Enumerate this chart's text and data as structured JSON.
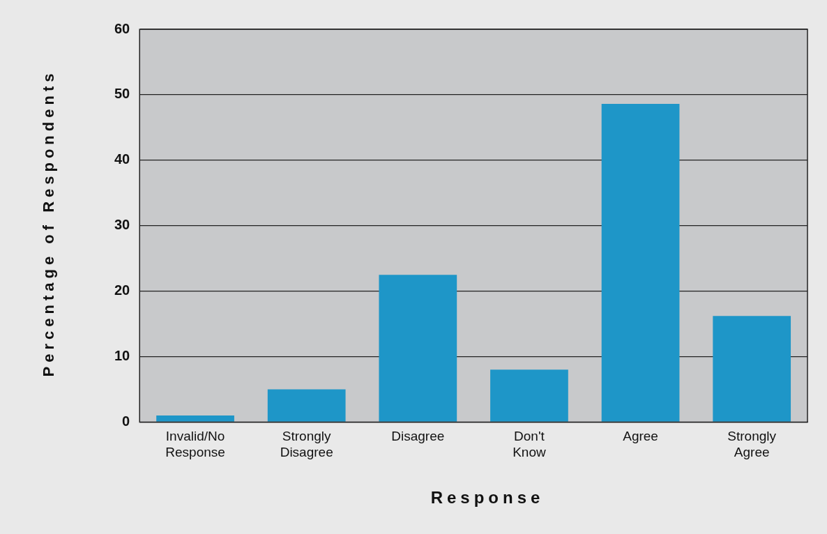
{
  "chart_data": {
    "type": "bar",
    "xlabel": "Response",
    "ylabel": "Percentage of Respondents",
    "categories": [
      "Invalid/No Response",
      "Strongly Disagree",
      "Disagree",
      "Don't Know",
      "Agree",
      "Strongly Agree"
    ],
    "values": [
      1,
      5,
      22.5,
      8,
      48.6,
      16.2
    ],
    "color": "#1e96c8",
    "ylim": [
      0,
      60
    ],
    "yticks": [
      0,
      10,
      20,
      30,
      40,
      50,
      60
    ],
    "grid": "y",
    "legend": false
  }
}
